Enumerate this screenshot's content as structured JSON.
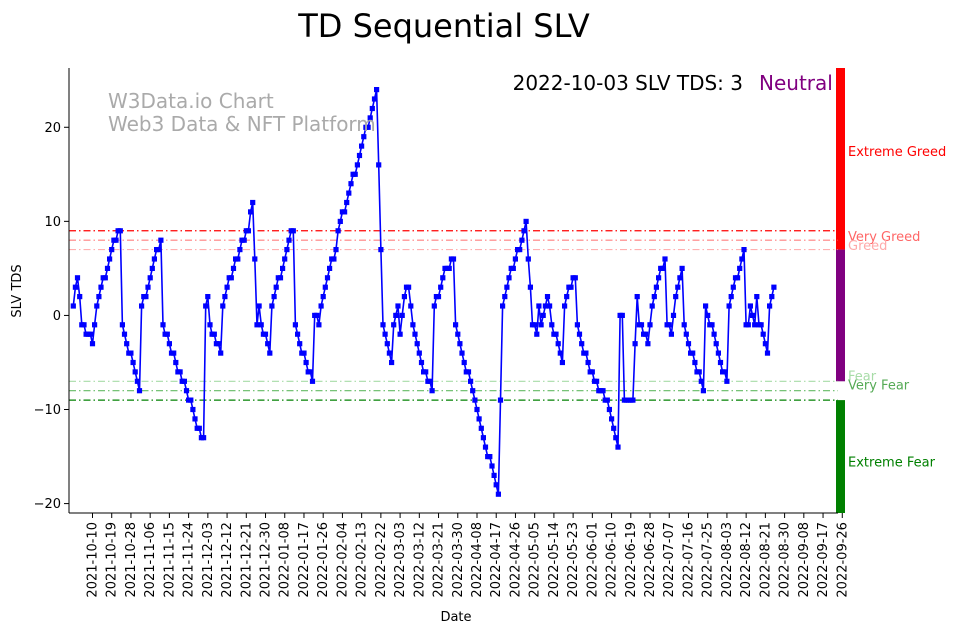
{
  "chart_data": {
    "type": "line",
    "title": "TD Sequential SLV",
    "xlabel": "Date",
    "ylabel": "SLV TDS",
    "ylim": [
      -21,
      26.3
    ],
    "yticks": [
      -20,
      -10,
      0,
      10,
      20
    ],
    "watermark": [
      "W3Data.io Chart",
      "Web3 Data & NFT Platform"
    ],
    "status": {
      "date_label": "2022-10-03 SLV TDS: 3",
      "sentiment": "Neutral",
      "sentiment_color": "#800080"
    },
    "x_range": [
      -2,
      358
    ],
    "xtick_labels": [
      "2021-10-10",
      "2021-10-19",
      "2021-10-28",
      "2021-11-06",
      "2021-11-15",
      "2021-11-24",
      "2021-12-03",
      "2021-12-12",
      "2021-12-21",
      "2021-12-30",
      "2022-01-08",
      "2022-01-17",
      "2022-01-26",
      "2022-02-04",
      "2022-02-13",
      "2022-02-22",
      "2022-03-03",
      "2022-03-12",
      "2022-03-21",
      "2022-03-30",
      "2022-04-08",
      "2022-04-17",
      "2022-04-26",
      "2022-05-05",
      "2022-05-14",
      "2022-05-23",
      "2022-06-01",
      "2022-06-10",
      "2022-06-19",
      "2022-06-28",
      "2022-07-07",
      "2022-07-16",
      "2022-07-25",
      "2022-08-03",
      "2022-08-12",
      "2022-08-21",
      "2022-08-30",
      "2022-09-08",
      "2022-09-17",
      "2022-09-26"
    ],
    "xtick_days": [
      9,
      18,
      27,
      36,
      45,
      54,
      63,
      72,
      81,
      90,
      99,
      108,
      117,
      126,
      135,
      144,
      153,
      162,
      171,
      180,
      189,
      198,
      207,
      216,
      225,
      234,
      243,
      252,
      261,
      270,
      279,
      288,
      297,
      306,
      315,
      324,
      333,
      342,
      351,
      360
    ],
    "thresholds": [
      {
        "label": "Very Greed",
        "value": 9,
        "color": "#ff0000",
        "label_color": "#ff6666"
      },
      {
        "label": "Greed",
        "value": 8,
        "color": "#ff8080",
        "label_color": "#ffaaaa"
      },
      {
        "label": "",
        "value": 7,
        "color": "#ffb0b0",
        "label_color": "#ffaaaa"
      },
      {
        "label": "Fear",
        "value": -7,
        "color": "#a8dca8",
        "label_color": "#a8dca8"
      },
      {
        "label": "Very Fear",
        "value": -8,
        "color": "#66bb66",
        "label_color": "#55aa55"
      },
      {
        "label": "",
        "value": -9,
        "color": "#008000",
        "label_color": "#008000"
      }
    ],
    "zones": [
      {
        "label": "Extreme Greed",
        "from": 7,
        "to": 26.3,
        "color": "#ff0000",
        "label_y": 17.5
      },
      {
        "label": "",
        "from": -7,
        "to": 7,
        "color": "#800080",
        "label_y": 0
      },
      {
        "label": "Extreme Fear",
        "from": -21,
        "to": -9,
        "color": "#008000",
        "label_y": -15.5
      }
    ],
    "anchors": [
      [
        0,
        1
      ],
      [
        1,
        3
      ],
      [
        2,
        4
      ],
      [
        4,
        -1
      ],
      [
        7,
        -2
      ],
      [
        9,
        -3
      ],
      [
        11,
        1
      ],
      [
        13,
        3
      ],
      [
        16,
        5
      ],
      [
        19,
        8
      ],
      [
        22,
        9
      ],
      [
        23,
        -1
      ],
      [
        25,
        -3
      ],
      [
        28,
        -5
      ],
      [
        30,
        -7
      ],
      [
        31,
        -8
      ],
      [
        32,
        1
      ],
      [
        35,
        3
      ],
      [
        38,
        6
      ],
      [
        41,
        8
      ],
      [
        42,
        -1
      ],
      [
        45,
        -3
      ],
      [
        48,
        -5
      ],
      [
        51,
        -7
      ],
      [
        53,
        -8
      ],
      [
        56,
        -10
      ],
      [
        58,
        -12
      ],
      [
        61,
        -13
      ],
      [
        62,
        1
      ],
      [
        63,
        2
      ],
      [
        64,
        -1
      ],
      [
        65,
        -2
      ],
      [
        67,
        -3
      ],
      [
        69,
        -4
      ],
      [
        70,
        1
      ],
      [
        72,
        3
      ],
      [
        75,
        5
      ],
      [
        78,
        7
      ],
      [
        80,
        8
      ],
      [
        82,
        9
      ],
      [
        84,
        12
      ],
      [
        86,
        -1
      ],
      [
        87,
        1
      ],
      [
        88,
        -1
      ],
      [
        91,
        -3
      ],
      [
        92,
        -4
      ],
      [
        93,
        1
      ],
      [
        95,
        3
      ],
      [
        98,
        5
      ],
      [
        101,
        8
      ],
      [
        103,
        9
      ],
      [
        104,
        -1
      ],
      [
        106,
        -3
      ],
      [
        109,
        -5
      ],
      [
        112,
        -7
      ],
      [
        113,
        0
      ],
      [
        115,
        -1
      ],
      [
        117,
        2
      ],
      [
        120,
        5
      ],
      [
        123,
        7
      ],
      [
        125,
        10
      ],
      [
        128,
        12
      ],
      [
        130,
        14
      ],
      [
        133,
        16
      ],
      [
        136,
        19
      ],
      [
        139,
        21
      ],
      [
        142,
        24
      ],
      [
        145,
        -1
      ],
      [
        147,
        -3
      ],
      [
        149,
        -5
      ],
      [
        150,
        -1
      ],
      [
        152,
        1
      ],
      [
        153,
        -2
      ],
      [
        155,
        2
      ],
      [
        157,
        3
      ],
      [
        159,
        -1
      ],
      [
        161,
        -3
      ],
      [
        163,
        -5
      ],
      [
        166,
        -7
      ],
      [
        168,
        -8
      ],
      [
        169,
        1
      ],
      [
        171,
        2
      ],
      [
        173,
        4
      ],
      [
        175,
        5
      ],
      [
        178,
        6
      ],
      [
        179,
        -1
      ],
      [
        181,
        -3
      ],
      [
        183,
        -5
      ],
      [
        186,
        -7
      ],
      [
        188,
        -9
      ],
      [
        190,
        -11
      ],
      [
        193,
        -14
      ],
      [
        196,
        -16
      ],
      [
        198,
        -18
      ],
      [
        199,
        -19
      ],
      [
        201,
        1
      ],
      [
        204,
        4
      ],
      [
        207,
        6
      ],
      [
        210,
        8
      ],
      [
        212,
        10
      ],
      [
        215,
        -1
      ],
      [
        217,
        -2
      ],
      [
        218,
        1
      ],
      [
        219,
        -1
      ],
      [
        222,
        2
      ],
      [
        224,
        -1
      ],
      [
        227,
        -3
      ],
      [
        229,
        -5
      ],
      [
        230,
        1
      ],
      [
        232,
        3
      ],
      [
        235,
        4
      ],
      [
        236,
        -1
      ],
      [
        238,
        -3
      ],
      [
        241,
        -5
      ],
      [
        244,
        -7
      ],
      [
        246,
        -8
      ],
      [
        250,
        -9
      ],
      [
        253,
        -12
      ],
      [
        255,
        -14
      ],
      [
        256,
        0
      ],
      [
        257,
        0
      ],
      [
        258,
        -9
      ],
      [
        262,
        -9
      ],
      [
        264,
        2
      ],
      [
        265,
        -1
      ],
      [
        267,
        -2
      ],
      [
        269,
        -3
      ],
      [
        271,
        1
      ],
      [
        274,
        4
      ],
      [
        277,
        6
      ],
      [
        278,
        -1
      ],
      [
        280,
        -2
      ],
      [
        282,
        2
      ],
      [
        284,
        4
      ],
      [
        285,
        5
      ],
      [
        286,
        -1
      ],
      [
        288,
        -3
      ],
      [
        291,
        -5
      ],
      [
        294,
        -7
      ],
      [
        295,
        -8
      ],
      [
        296,
        1
      ],
      [
        298,
        -1
      ],
      [
        300,
        -2
      ],
      [
        303,
        -5
      ],
      [
        306,
        -7
      ],
      [
        307,
        1
      ],
      [
        309,
        3
      ],
      [
        312,
        5
      ],
      [
        313,
        6
      ],
      [
        314,
        7
      ],
      [
        315,
        -1
      ],
      [
        316,
        -1
      ],
      [
        317,
        1
      ],
      [
        319,
        -1
      ],
      [
        320,
        2
      ],
      [
        321,
        -1
      ],
      [
        323,
        -2
      ],
      [
        324,
        -3
      ],
      [
        325,
        -4
      ],
      [
        326,
        1
      ],
      [
        327,
        2
      ],
      [
        328,
        3
      ]
    ]
  }
}
